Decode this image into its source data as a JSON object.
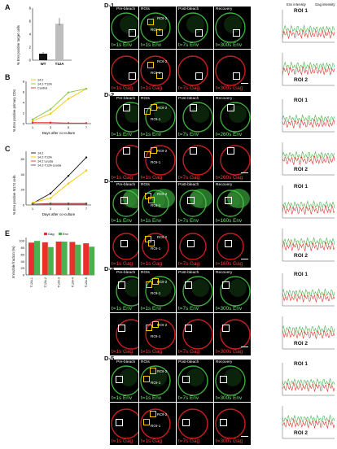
{
  "panels": {
    "A": {
      "letter": "A",
      "ylabel": "% Env positive target cells",
      "categories": [
        "WT",
        "T12A"
      ],
      "values": [
        1.0,
        5.6
      ],
      "ylim": [
        0,
        8
      ],
      "ticks": [
        "0",
        "2",
        "4",
        "6",
        "8"
      ]
    },
    "B": {
      "letter": "B",
      "ylabel": "% Env positive primary CD4",
      "xlabel": "Days after co-culture",
      "legend": [
        "14.2",
        "14.2-T12A",
        "Control"
      ],
      "x": [
        "1",
        "3",
        "5",
        "7"
      ],
      "ticks": [
        "0",
        "2",
        "4",
        "6",
        "8"
      ]
    },
    "C": {
      "letter": "C",
      "ylabel": "% Env positive M174 cells",
      "xlabel": "Days after co-culture",
      "legend": [
        "14.2",
        "14.2-T12A",
        "14.2 Leu3a",
        "14.2-T12A Leu3a"
      ],
      "x": [
        "1",
        "3",
        "5",
        "7"
      ],
      "ticks": [
        "0",
        "20",
        "40",
        "60"
      ]
    },
    "E": {
      "letter": "E",
      "ylabel": "Immobile fraction (%)",
      "legend": [
        "Gag",
        "Env"
      ],
      "categories": [
        "T12A-1",
        "T12A-2",
        "T12A-3",
        "T12A-4",
        "T12A-5"
      ],
      "gag": [
        95,
        96,
        98,
        97,
        93
      ],
      "env": [
        100,
        82,
        98,
        89,
        83
      ],
      "ticks": [
        "0",
        "20",
        "40",
        "60",
        "80",
        "100"
      ]
    }
  },
  "chart_data": [
    {
      "type": "bar",
      "title": "",
      "categories": [
        "WT",
        "T12A"
      ],
      "values": [
        1.0,
        5.6
      ],
      "ylabel": "% Env positive target cells",
      "ylim": [
        0,
        8
      ]
    },
    {
      "type": "line",
      "title": "",
      "x": [
        1,
        3,
        5,
        7
      ],
      "xlabel": "Days after co-culture",
      "ylabel": "% Env positive primary CD4",
      "series": [
        {
          "name": "14.2",
          "values": [
            0.5,
            1.9,
            4.7,
            6.6
          ]
        },
        {
          "name": "14.2-T12A",
          "values": [
            0.8,
            2.7,
            5.9,
            6.6
          ]
        },
        {
          "name": "Control",
          "values": [
            0.2,
            0.2,
            0.1,
            0.1
          ]
        }
      ],
      "ylim": [
        0,
        8
      ]
    },
    {
      "type": "line",
      "title": "",
      "x": [
        1,
        3,
        5,
        7
      ],
      "xlabel": "Days after co-culture",
      "ylabel": "% Env positive M174 cells",
      "series": [
        {
          "name": "14.2",
          "values": [
            2,
            15,
            38,
            62
          ]
        },
        {
          "name": "14.2-T12A",
          "values": [
            3,
            9,
            28,
            45
          ]
        },
        {
          "name": "14.2 Leu3a",
          "values": [
            1,
            2,
            2,
            2
          ]
        },
        {
          "name": "14.2-T12A Leu3a",
          "values": [
            1,
            1,
            1,
            1
          ]
        }
      ],
      "ylim": [
        0,
        70
      ]
    },
    {
      "type": "bar",
      "title": "",
      "categories": [
        "T12A-1",
        "T12A-2",
        "T12A-3",
        "T12A-4",
        "T12A-5"
      ],
      "ylabel": "Immobile fraction (%)",
      "series": [
        {
          "name": "Gag",
          "values": [
            95,
            96,
            98,
            97,
            93
          ]
        },
        {
          "name": "Env",
          "values": [
            100,
            82,
            98,
            89,
            83
          ]
        }
      ],
      "ylim": [
        0,
        110
      ]
    }
  ],
  "d_panels": {
    "legend": {
      "env": "Env intensity",
      "gag": "Gag intensity"
    },
    "headers": [
      "Pre-bleach",
      "ROIs",
      "Post-bleach",
      "Recovery"
    ],
    "roi1": "ROI-1",
    "roi2": "ROI-2",
    "rows": [
      {
        "label": "D-1",
        "env_times": [
          "t=1s Env",
          "t=1s Env",
          "t=7s Env",
          "t=300s Env"
        ],
        "gag_times": [
          "t=1s Gag",
          "t=1s Gag",
          "t=7s Gag",
          "t=300s Gag"
        ],
        "r1": "ROI 1",
        "r2": "ROI 2"
      },
      {
        "label": "D-2",
        "env_times": [
          "t=1s Env",
          "t=1s Env",
          "t=7s Env",
          "t=260s Env"
        ],
        "gag_times": [
          "t=1s Gag",
          "t=1s Gag",
          "t=7s Gag",
          "t=260s Gag"
        ],
        "r1": "ROI 1",
        "r2": "ROI 2"
      },
      {
        "label": "D-3",
        "env_times": [
          "t=1s Env",
          "t=1s Env",
          "t=7s Env",
          "t=160s Env"
        ],
        "gag_times": [
          "t=1s Gag",
          "t=1s Gag",
          "t=7s Gag",
          "t=160s Gag"
        ],
        "r1": "ROI 1",
        "r2": "ROI 2"
      },
      {
        "label": "D-4",
        "env_times": [
          "t=1s Env",
          "t=1s Env",
          "t=7s Env",
          "t=300s Env"
        ],
        "gag_times": [
          "t=1s Gag",
          "t=1s Gag",
          "t=7s Gag",
          "t=300s Gag"
        ],
        "r1": "ROI 1",
        "r2": "ROI 2"
      },
      {
        "label": "D-5",
        "env_times": [
          "t=1s Env",
          "t=1s Env",
          "t=7s Env",
          "t=300s Env"
        ],
        "gag_times": [
          "t=1s Gag",
          "t=1s Gag",
          "t=7s Gag",
          "t=300s Gag"
        ],
        "r1": "ROI 1",
        "r2": "ROI 2"
      }
    ]
  },
  "colors": {
    "gag": "#e8302a",
    "env": "#4caf50",
    "black": "#111111",
    "gray": "#bdbdbd",
    "yellow": "#f6c800"
  }
}
